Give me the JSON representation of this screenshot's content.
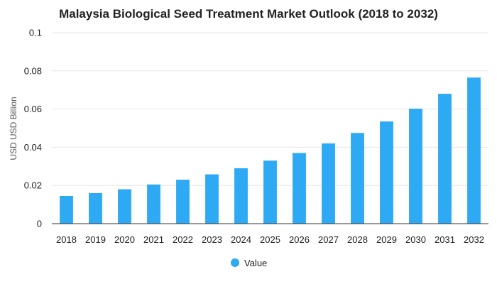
{
  "chart_data": {
    "type": "bar",
    "title": "Malaysia Biological Seed Treatment Market Outlook (2018 to 2032)",
    "xlabel": "",
    "ylabel": "USD USD Billion",
    "categories": [
      "2018",
      "2019",
      "2020",
      "2021",
      "2022",
      "2023",
      "2024",
      "2025",
      "2026",
      "2027",
      "2028",
      "2029",
      "2030",
      "2031",
      "2032"
    ],
    "series": [
      {
        "name": "Value",
        "color": "#2eaaf5",
        "values": [
          0.0145,
          0.016,
          0.018,
          0.0205,
          0.023,
          0.0258,
          0.029,
          0.033,
          0.037,
          0.042,
          0.0475,
          0.0535,
          0.0602,
          0.068,
          0.0765
        ]
      }
    ],
    "ylim": [
      0,
      0.1
    ],
    "yticks": [
      0,
      0.02,
      0.04,
      0.06,
      0.08,
      0.1
    ],
    "ytick_labels": [
      "0",
      "0.02",
      "0.04",
      "0.06",
      "0.08",
      "0.1"
    ],
    "grid": true,
    "legend_position": "bottom-center"
  }
}
